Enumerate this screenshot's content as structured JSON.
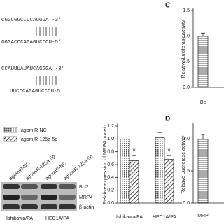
{
  "sequences": [
    {
      "top": "CGGCGGCCUCAGGGA -3'",
      "bottom": "GGGACCCAGAGUCCCU-5'"
    },
    {
      "top": "CCAUUUAUAUCAGGGA -3'",
      "bottom": "UUCCCAGAGUCCCU-5'"
    }
  ],
  "blot": {
    "lanes": [
      "agomiR-NC",
      "agomiR-125a-5p",
      "agomiR-NC",
      "agomiR-125a-5p"
    ],
    "rows": [
      "Bcl2",
      "MRP4",
      "β-actin"
    ],
    "groups": [
      "Ishikawa/PA",
      "HEC1A/PA"
    ]
  },
  "charts": [
    {
      "type": "bar",
      "y_label": "Relative expression of MRP4 protein",
      "categories": [
        "Ishikawa/PA",
        "HEC1A/PA"
      ],
      "series": [
        {
          "name": "agomiR-NC",
          "pattern": "dots",
          "values": [
            1.0,
            1.02
          ],
          "errors": [
            0.14,
            0.08
          ]
        },
        {
          "name": "agomiR-125a-5p",
          "pattern": "hatch",
          "values": [
            0.66,
            0.68
          ],
          "errors": [
            0.08,
            0.06
          ],
          "annotations": [
            "*",
            "*"
          ]
        }
      ],
      "ylim": [
        0,
        1.2
      ],
      "yticks": [
        {
          "value": 0,
          "label": "0.0"
        },
        {
          "value": 0.2,
          "label": "0.2"
        },
        {
          "value": 0.4,
          "label": "0.4"
        },
        {
          "value": 0.6,
          "label": "0.6"
        },
        {
          "value": 0.8,
          "label": "0.8"
        },
        {
          "value": 1,
          "label": "1.0"
        },
        {
          "value": 1.2,
          "label": "1.2"
        }
      ]
    },
    {
      "type": "bar",
      "panel": "C",
      "y_label": "Relative Luciferase activity",
      "categories": [
        "Bc"
      ],
      "series": [
        {
          "pattern": "lines",
          "values": [
            1.0
          ],
          "errors": [
            0.06
          ]
        }
      ],
      "ylim": [
        0,
        1.5
      ],
      "yticks": [
        {
          "value": 0,
          "label": "0.0"
        },
        {
          "value": 0.5,
          "label": "0.5"
        },
        {
          "value": 1,
          "label": "1.0"
        },
        {
          "value": 1.5,
          "label": "1.5"
        }
      ]
    },
    {
      "type": "bar",
      "panel": "D",
      "y_label": "Relative Luciferase activity",
      "categories": [
        "MRP"
      ],
      "series": [
        {
          "pattern": "lines",
          "values": [
            1.0
          ],
          "errors": [
            0.07
          ]
        }
      ],
      "ylim": [
        0,
        1.2
      ],
      "yticks": [
        {
          "value": 0,
          "label": "0.0"
        },
        {
          "value": 0.5,
          "label": "0.5"
        },
        {
          "value": 1,
          "label": "1.0"
        }
      ]
    }
  ]
}
